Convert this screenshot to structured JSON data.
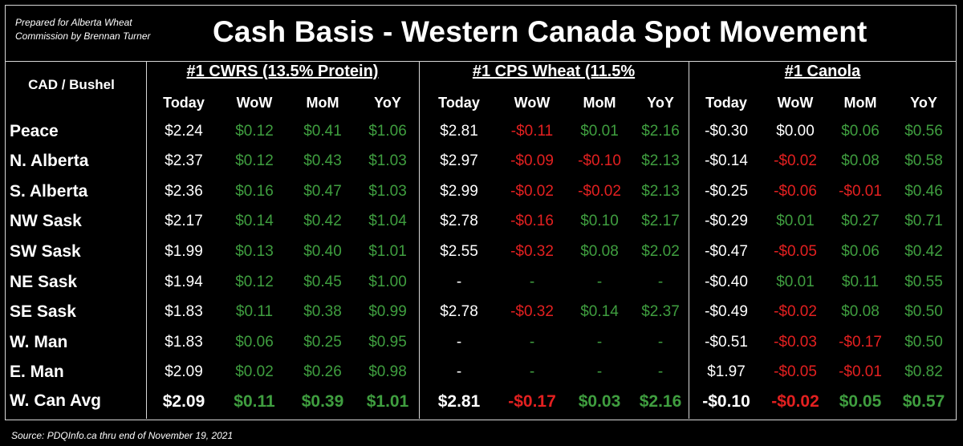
{
  "prepared_by": [
    "Prepared for Alberta Wheat",
    "Commission by Brennan Turner"
  ],
  "title": "Cash Basis - Western Canada Spot Movement",
  "unit_label": "CAD / Bushel",
  "groups": [
    "#1 CWRS (13.5% Protein)",
    "#1 CPS Wheat (11.5%",
    "#1 Canola"
  ],
  "column_headers": [
    "Today",
    "WoW",
    "MoM",
    "YoY"
  ],
  "colors": {
    "positive": "#3f9e3f",
    "negative": "#e32020",
    "neutral": "#ffffff"
  },
  "rows": [
    {
      "label": "Peace",
      "cwrs": [
        "$2.24",
        "$0.12",
        "$0.41",
        "$1.06"
      ],
      "cps": [
        "$2.81",
        "-$0.11",
        "$0.01",
        "$2.16"
      ],
      "canola": [
        "-$0.30",
        "$0.00",
        "$0.06",
        "$0.56"
      ]
    },
    {
      "label": "N. Alberta",
      "cwrs": [
        "$2.37",
        "$0.12",
        "$0.43",
        "$1.03"
      ],
      "cps": [
        "$2.97",
        "-$0.09",
        "-$0.10",
        "$2.13"
      ],
      "canola": [
        "-$0.14",
        "-$0.02",
        "$0.08",
        "$0.58"
      ]
    },
    {
      "label": "S. Alberta",
      "cwrs": [
        "$2.36",
        "$0.16",
        "$0.47",
        "$1.03"
      ],
      "cps": [
        "$2.99",
        "-$0.02",
        "-$0.02",
        "$2.13"
      ],
      "canola": [
        "-$0.25",
        "-$0.06",
        "-$0.01",
        "$0.46"
      ]
    },
    {
      "label": "NW Sask",
      "cwrs": [
        "$2.17",
        "$0.14",
        "$0.42",
        "$1.04"
      ],
      "cps": [
        "$2.78",
        "-$0.16",
        "$0.10",
        "$2.17"
      ],
      "canola": [
        "-$0.29",
        "$0.01",
        "$0.27",
        "$0.71"
      ]
    },
    {
      "label": "SW Sask",
      "cwrs": [
        "$1.99",
        "$0.13",
        "$0.40",
        "$1.01"
      ],
      "cps": [
        "$2.55",
        "-$0.32",
        "$0.08",
        "$2.02"
      ],
      "canola": [
        "-$0.47",
        "-$0.05",
        "$0.06",
        "$0.42"
      ]
    },
    {
      "label": "NE Sask",
      "cwrs": [
        "$1.94",
        "$0.12",
        "$0.45",
        "$1.00"
      ],
      "cps": [
        "-",
        "-",
        "-",
        "-"
      ],
      "canola": [
        "-$0.40",
        "$0.01",
        "$0.11",
        "$0.55"
      ]
    },
    {
      "label": "SE Sask",
      "cwrs": [
        "$1.83",
        "$0.11",
        "$0.38",
        "$0.99"
      ],
      "cps": [
        "$2.78",
        "-$0.32",
        "$0.14",
        "$2.37"
      ],
      "canola": [
        "-$0.49",
        "-$0.02",
        "$0.08",
        "$0.50"
      ]
    },
    {
      "label": "W. Man",
      "cwrs": [
        "$1.83",
        "$0.06",
        "$0.25",
        "$0.95"
      ],
      "cps": [
        "-",
        "-",
        "-",
        "-"
      ],
      "canola": [
        "-$0.51",
        "-$0.03",
        "-$0.17",
        "$0.50"
      ]
    },
    {
      "label": "E. Man",
      "cwrs": [
        "$2.09",
        "$0.02",
        "$0.26",
        "$0.98"
      ],
      "cps": [
        "-",
        "-",
        "-",
        "-"
      ],
      "canola": [
        "$1.97",
        "-$0.05",
        "-$0.01",
        "$0.82"
      ]
    },
    {
      "label": "W. Can Avg",
      "cwrs": [
        "$2.09",
        "$0.11",
        "$0.39",
        "$1.01"
      ],
      "cps": [
        "$2.81",
        "-$0.17",
        "$0.03",
        "$2.16"
      ],
      "canola": [
        "-$0.10",
        "-$0.02",
        "$0.05",
        "$0.57"
      ]
    }
  ],
  "source": "Source: PDQInfo.ca thru end of November 19, 2021"
}
